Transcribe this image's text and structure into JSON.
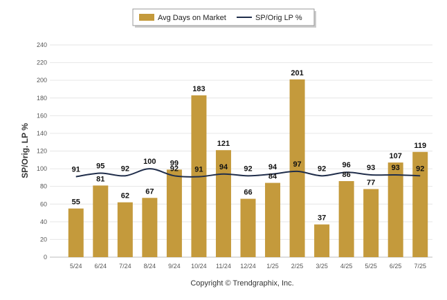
{
  "chart_data": {
    "type": "bar",
    "categories": [
      "5/24",
      "6/24",
      "7/24",
      "8/24",
      "9/24",
      "10/24",
      "11/24",
      "12/24",
      "1/25",
      "2/25",
      "3/25",
      "4/25",
      "5/25",
      "6/25",
      "7/25"
    ],
    "series": [
      {
        "name": "Avg Days on Market",
        "type": "bar",
        "color": "#C49A3C",
        "values": [
          55,
          81,
          62,
          67,
          99,
          183,
          121,
          66,
          84,
          201,
          37,
          86,
          77,
          107,
          119
        ]
      },
      {
        "name": "SP/Orig LP %",
        "type": "line",
        "color": "#1F2D4A",
        "values": [
          91,
          95,
          92,
          100,
          92,
          91,
          94,
          92,
          94,
          97,
          92,
          96,
          93,
          93,
          92
        ]
      }
    ],
    "ylabel": "SP/Orig. LP %",
    "ylim": [
      0,
      240
    ],
    "yticks": [
      0,
      20,
      40,
      60,
      80,
      100,
      120,
      140,
      160,
      180,
      200,
      220,
      240
    ],
    "grid": true,
    "legend_position": "top-center",
    "copyright": "Copyright © Trendgraphix, Inc."
  }
}
